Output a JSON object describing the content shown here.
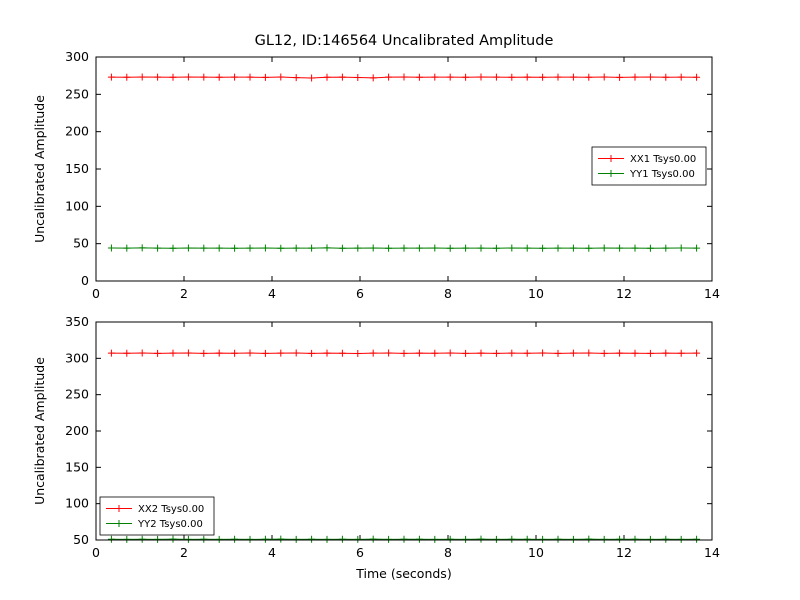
{
  "figure": {
    "title": "GL12, ID:146564 Uncalibrated Amplitude",
    "background": "#ffffff",
    "frame_color": "#000000"
  },
  "chart_data": [
    {
      "type": "line",
      "title": "",
      "xlabel": "",
      "ylabel": "Uncalibrated Amplitude",
      "xlim": [
        0,
        14
      ],
      "ylim": [
        0,
        300
      ],
      "xticks": [
        0,
        2,
        4,
        6,
        8,
        10,
        12,
        14
      ],
      "yticks": [
        0,
        50,
        100,
        150,
        200,
        250,
        300
      ],
      "grid": false,
      "legend_position": "center-right",
      "x": [
        0.35,
        0.7,
        1.05,
        1.4,
        1.75,
        2.1,
        2.45,
        2.8,
        3.15,
        3.5,
        3.85,
        4.2,
        4.55,
        4.9,
        5.25,
        5.6,
        5.95,
        6.3,
        6.65,
        7.0,
        7.35,
        7.7,
        8.05,
        8.4,
        8.75,
        9.1,
        9.45,
        9.8,
        10.15,
        10.5,
        10.85,
        11.2,
        11.55,
        11.9,
        12.25,
        12.6,
        12.95,
        13.3,
        13.65
      ],
      "series": [
        {
          "name": "XX1 Tsys0.00",
          "color": "#ff0000",
          "marker": "+",
          "values": [
            273.1,
            272.9,
            273.3,
            273.0,
            272.8,
            273.2,
            273.0,
            272.9,
            273.1,
            273.0,
            272.7,
            273.2,
            272.4,
            271.9,
            272.8,
            273.1,
            272.6,
            272.0,
            273.0,
            273.2,
            272.9,
            273.1,
            273.0,
            272.8,
            273.2,
            273.0,
            272.9,
            273.1,
            272.8,
            273.0,
            273.1,
            272.9,
            273.3,
            272.7,
            273.0,
            273.2,
            272.8,
            273.0,
            272.9
          ]
        },
        {
          "name": "YY1 Tsys0.00",
          "color": "#008000",
          "marker": "+",
          "values": [
            44.2,
            44.0,
            44.3,
            44.1,
            43.9,
            44.2,
            44.0,
            44.1,
            43.8,
            44.0,
            44.2,
            43.9,
            44.1,
            44.0,
            44.3,
            43.8,
            44.0,
            44.2,
            43.9,
            44.1,
            44.0,
            44.2,
            43.9,
            44.0,
            44.1,
            43.8,
            44.2,
            44.0,
            43.9,
            44.1,
            44.0,
            43.8,
            44.2,
            44.0,
            44.1,
            43.9,
            44.0,
            44.2,
            44.0
          ]
        }
      ]
    },
    {
      "type": "line",
      "title": "",
      "xlabel": "Time (seconds)",
      "ylabel": "Uncalibrated Amplitude",
      "xlim": [
        0,
        14
      ],
      "ylim": [
        50,
        350
      ],
      "xticks": [
        0,
        2,
        4,
        6,
        8,
        10,
        12,
        14
      ],
      "yticks": [
        50,
        100,
        150,
        200,
        250,
        300,
        350
      ],
      "grid": false,
      "legend_position": "lower-left",
      "x": [
        0.35,
        0.7,
        1.05,
        1.4,
        1.75,
        2.1,
        2.45,
        2.8,
        3.15,
        3.5,
        3.85,
        4.2,
        4.55,
        4.9,
        5.25,
        5.6,
        5.95,
        6.3,
        6.65,
        7.0,
        7.35,
        7.7,
        8.05,
        8.4,
        8.75,
        9.1,
        9.45,
        9.8,
        10.15,
        10.5,
        10.85,
        11.2,
        11.55,
        11.9,
        12.25,
        12.6,
        12.95,
        13.3,
        13.65
      ],
      "series": [
        {
          "name": "XX2 Tsys0.00",
          "color": "#ff0000",
          "marker": "+",
          "values": [
            307.2,
            307.0,
            307.4,
            306.8,
            307.1,
            307.3,
            306.9,
            307.2,
            307.0,
            307.3,
            306.8,
            307.1,
            307.4,
            306.9,
            307.2,
            307.0,
            306.7,
            307.1,
            307.3,
            306.9,
            307.2,
            307.0,
            307.4,
            306.8,
            307.1,
            306.9,
            307.2,
            307.0,
            307.3,
            306.8,
            307.1,
            307.4,
            306.9,
            307.2,
            307.0,
            306.8,
            307.2,
            307.0,
            307.1
          ]
        },
        {
          "name": "YY2 Tsys0.00",
          "color": "#008000",
          "marker": "+",
          "values": [
            51.0,
            50.8,
            51.1,
            50.9,
            51.2,
            50.8,
            51.0,
            50.9,
            51.1,
            50.8,
            51.0,
            51.2,
            50.9,
            51.1,
            50.8,
            51.0,
            50.9,
            51.2,
            50.8,
            51.0,
            51.1,
            50.9,
            51.0,
            50.8,
            51.2,
            50.9,
            51.0,
            51.1,
            50.8,
            51.0,
            50.9,
            51.2,
            50.8,
            51.0,
            51.1,
            50.9,
            51.0,
            50.8,
            51.0
          ]
        }
      ]
    }
  ]
}
